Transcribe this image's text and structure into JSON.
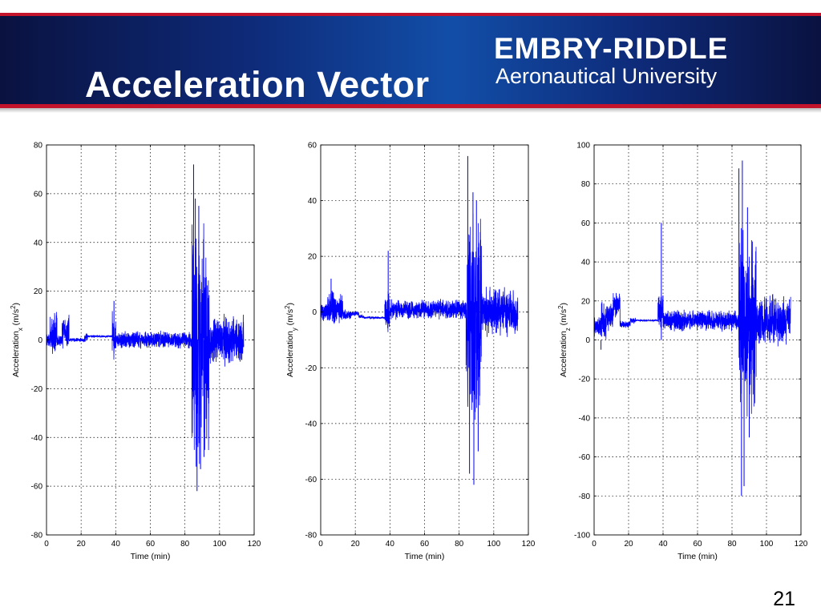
{
  "slide": {
    "title": "Acceleration Vector",
    "page_number": "21",
    "colors": {
      "banner_dark": "#0a1240",
      "banner_mid": "#124ea8",
      "banner_rule": "#c4142c",
      "trace": "#0000ff"
    }
  },
  "logo": {
    "name": "EMBRY-RIDDLE",
    "subtitle": "Aeronautical University"
  },
  "chart_data": [
    {
      "type": "line",
      "xlabel": "Time (min)",
      "ylabel": "Acceleration",
      "ylabel_sub": "x",
      "ylabel_unit_pre": " (m/s",
      "ylabel_unit_sup": "2",
      "ylabel_unit_post": ")",
      "xlim": [
        0,
        120
      ],
      "ylim": [
        -80,
        80
      ],
      "xticks": [
        0,
        20,
        40,
        60,
        80,
        100,
        120
      ],
      "yticks": [
        -80,
        -60,
        -40,
        -20,
        0,
        20,
        40,
        60,
        80
      ],
      "grid": true,
      "series": [
        {
          "color": "#0000ff",
          "segments": [
            {
              "x": [
                0,
                2
              ],
              "base": 0,
              "amp": 3
            },
            {
              "x": [
                2,
                6
              ],
              "base": 3,
              "amp": 10
            },
            {
              "x": [
                6,
                9
              ],
              "base": 0,
              "amp": 3
            },
            {
              "x": [
                9,
                13
              ],
              "base": 3,
              "amp": 8
            },
            {
              "x": [
                13,
                22
              ],
              "base": 0,
              "amp": 1
            },
            {
              "x": [
                22,
                24
              ],
              "base": 1,
              "amp": 2
            },
            {
              "x": [
                24,
                38
              ],
              "base": 1.5,
              "amp": 0.5
            },
            {
              "x": [
                38,
                40
              ],
              "base": 3,
              "amp": 12
            },
            {
              "x": [
                40,
                84
              ],
              "base": 0,
              "amp": 4
            },
            {
              "x": [
                84,
                94
              ],
              "base": 0,
              "amp": 55
            },
            {
              "x": [
                94,
                114
              ],
              "base": 0,
              "amp": 12
            }
          ],
          "spikes": [
            {
              "x": 85,
              "y": 72
            },
            {
              "x": 86,
              "y": 58
            },
            {
              "x": 87,
              "y": -62
            },
            {
              "x": 88,
              "y": 55
            },
            {
              "x": 89,
              "y": -53
            },
            {
              "x": 91,
              "y": -48
            },
            {
              "x": 86.5,
              "y": -52
            },
            {
              "x": 39,
              "y": 16
            }
          ]
        }
      ]
    },
    {
      "type": "line",
      "xlabel": "Time (min)",
      "ylabel": "Acceleration",
      "ylabel_sub": "y",
      "ylabel_unit_pre": " (m/s",
      "ylabel_unit_sup": "2",
      "ylabel_unit_post": ")",
      "xlim": [
        0,
        120
      ],
      "ylim": [
        -80,
        60
      ],
      "xticks": [
        0,
        20,
        40,
        60,
        80,
        100,
        120
      ],
      "yticks": [
        -80,
        -60,
        -40,
        -20,
        0,
        20,
        40,
        60
      ],
      "grid": true,
      "series": [
        {
          "color": "#0000ff",
          "segments": [
            {
              "x": [
                0,
                4
              ],
              "base": 0,
              "amp": 4
            },
            {
              "x": [
                4,
                8
              ],
              "base": 2,
              "amp": 8
            },
            {
              "x": [
                8,
                13
              ],
              "base": 1,
              "amp": 6
            },
            {
              "x": [
                13,
                18
              ],
              "base": -1,
              "amp": 2
            },
            {
              "x": [
                18,
                22
              ],
              "base": -0.5,
              "amp": 1
            },
            {
              "x": [
                22,
                25
              ],
              "base": -1.5,
              "amp": 1
            },
            {
              "x": [
                25,
                37
              ],
              "base": -2,
              "amp": 0.5
            },
            {
              "x": [
                37,
                40
              ],
              "base": 0,
              "amp": 8
            },
            {
              "x": [
                40,
                84
              ],
              "base": 1,
              "amp": 4
            },
            {
              "x": [
                84,
                93
              ],
              "base": 0,
              "amp": 45
            },
            {
              "x": [
                93,
                114
              ],
              "base": 0,
              "amp": 10
            }
          ],
          "spikes": [
            {
              "x": 85,
              "y": 56
            },
            {
              "x": 86,
              "y": -58
            },
            {
              "x": 88,
              "y": 43
            },
            {
              "x": 88.5,
              "y": -62
            },
            {
              "x": 90,
              "y": 40
            },
            {
              "x": 91,
              "y": -50
            },
            {
              "x": 39,
              "y": 22
            },
            {
              "x": 6,
              "y": 12
            }
          ]
        }
      ]
    },
    {
      "type": "line",
      "xlabel": "Time (min)",
      "ylabel": "Acceleration",
      "ylabel_sub": "z",
      "ylabel_unit_pre": " (m/s",
      "ylabel_unit_sup": "2",
      "ylabel_unit_post": ")",
      "xlim": [
        0,
        120
      ],
      "ylim": [
        -100,
        100
      ],
      "xticks": [
        0,
        20,
        40,
        60,
        80,
        100,
        120
      ],
      "yticks": [
        -100,
        -80,
        -60,
        -40,
        -20,
        0,
        20,
        40,
        60,
        80,
        100
      ],
      "grid": true,
      "series": [
        {
          "color": "#0000ff",
          "segments": [
            {
              "x": [
                0,
                4
              ],
              "base": 7,
              "amp": 6
            },
            {
              "x": [
                4,
                7
              ],
              "base": 8,
              "amp": 14
            },
            {
              "x": [
                7,
                11
              ],
              "base": 12,
              "amp": 8
            },
            {
              "x": [
                11,
                15
              ],
              "base": 18,
              "amp": 7
            },
            {
              "x": [
                15,
                21
              ],
              "base": 8,
              "amp": 2
            },
            {
              "x": [
                21,
                24
              ],
              "base": 10,
              "amp": 2
            },
            {
              "x": [
                24,
                37
              ],
              "base": 10,
              "amp": 0.5
            },
            {
              "x": [
                37,
                40
              ],
              "base": 14,
              "amp": 10
            },
            {
              "x": [
                40,
                84
              ],
              "base": 10,
              "amp": 6
            },
            {
              "x": [
                84,
                94
              ],
              "base": 10,
              "amp": 55
            },
            {
              "x": [
                94,
                114
              ],
              "base": 10,
              "amp": 14
            }
          ],
          "spikes": [
            {
              "x": 84,
              "y": 88
            },
            {
              "x": 86,
              "y": 92
            },
            {
              "x": 85.5,
              "y": -80
            },
            {
              "x": 87,
              "y": -75
            },
            {
              "x": 89,
              "y": 68
            },
            {
              "x": 90,
              "y": -50
            },
            {
              "x": 39,
              "y": 60
            },
            {
              "x": 4,
              "y": -5
            }
          ]
        }
      ]
    }
  ]
}
